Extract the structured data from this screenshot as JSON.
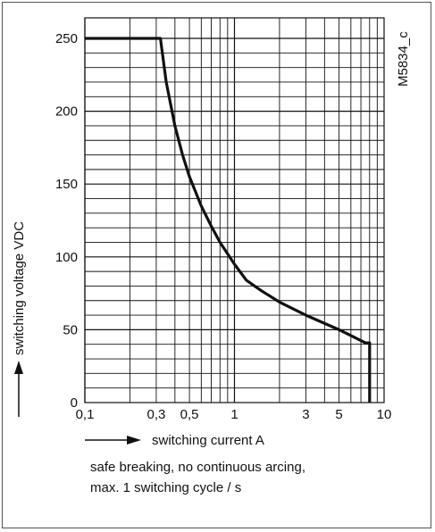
{
  "chart_data": {
    "type": "line",
    "x_scale": "log",
    "xlim": [
      0.1,
      10
    ],
    "ylim": [
      0,
      260
    ],
    "xlabel": "switching current A",
    "ylabel": "switching voltage VDC",
    "figure_code": "M5834_c",
    "x_ticks": [
      {
        "value": 0.1,
        "label": "0,1"
      },
      {
        "value": 0.3,
        "label": "0,3"
      },
      {
        "value": 0.5,
        "label": "0,5"
      },
      {
        "value": 1,
        "label": "1"
      },
      {
        "value": 3,
        "label": "3"
      },
      {
        "value": 5,
        "label": "5"
      },
      {
        "value": 10,
        "label": "10"
      }
    ],
    "y_ticks": [
      {
        "value": 0,
        "label": "0"
      },
      {
        "value": 50,
        "label": "50"
      },
      {
        "value": 100,
        "label": "100"
      },
      {
        "value": 150,
        "label": "150"
      },
      {
        "value": 200,
        "label": "200"
      },
      {
        "value": 250,
        "label": "250"
      }
    ],
    "grid": true,
    "series": [
      {
        "points": [
          [
            0.1,
            250
          ],
          [
            0.32,
            250
          ],
          [
            0.35,
            220
          ],
          [
            0.4,
            190
          ],
          [
            0.45,
            170
          ],
          [
            0.5,
            155
          ],
          [
            0.6,
            135
          ],
          [
            0.7,
            121
          ],
          [
            0.8,
            110
          ],
          [
            1,
            95
          ],
          [
            1.2,
            84
          ],
          [
            1.5,
            77
          ],
          [
            2,
            69
          ],
          [
            3,
            60
          ],
          [
            5,
            50
          ],
          [
            6,
            46
          ],
          [
            7.5,
            41
          ],
          [
            8,
            41
          ],
          [
            8,
            0
          ]
        ]
      }
    ]
  },
  "note": {
    "line1": "safe breaking, no continuous arcing,",
    "line2": "max. 1 switching cycle / s"
  }
}
